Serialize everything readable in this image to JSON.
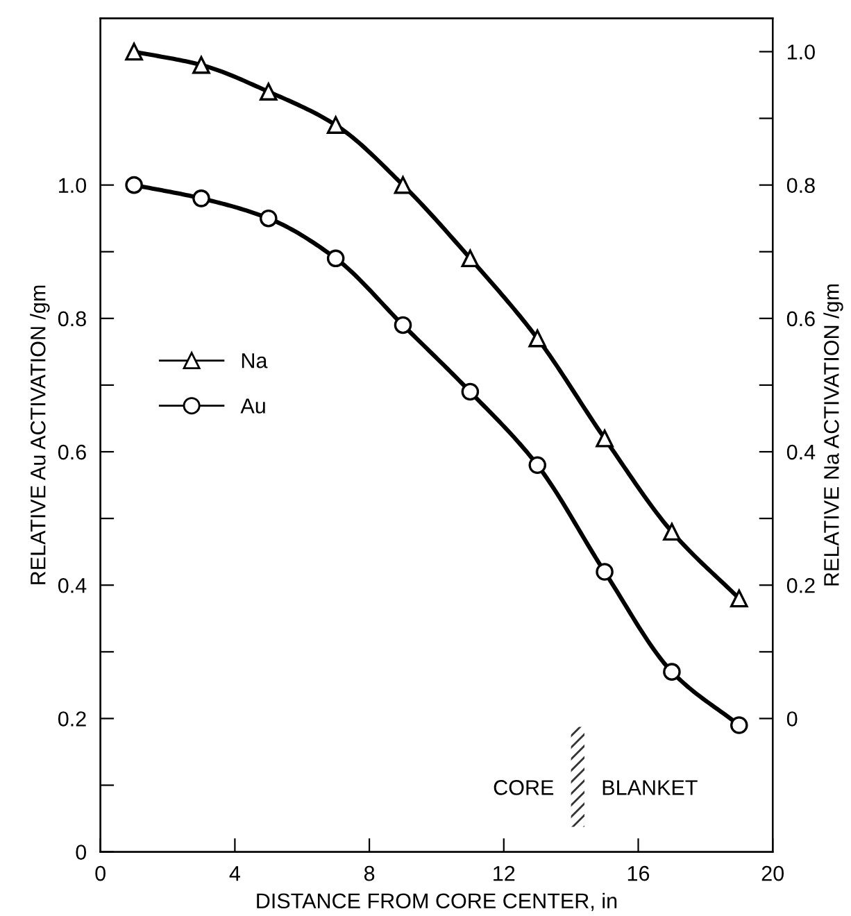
{
  "chart_data": {
    "type": "line",
    "xlabel": "DISTANCE FROM CORE CENTER, in",
    "ylabel": "RELATIVE Au ACTIVATION /gm",
    "y2label": "RELATIVE Na ACTIVATION /gm",
    "x": [
      1,
      3,
      5,
      7,
      9,
      11,
      13,
      15,
      17,
      19
    ],
    "series": [
      {
        "name": "Na",
        "color": "#000000",
        "marker": "triangle",
        "axis": "y2",
        "values": [
          1.0,
          0.98,
          0.94,
          0.89,
          0.8,
          0.69,
          0.57,
          0.42,
          0.28,
          0.18
        ]
      },
      {
        "name": "Au",
        "color": "#000000",
        "marker": "circle",
        "values": [
          1.0,
          0.98,
          0.95,
          0.89,
          0.79,
          0.69,
          0.58,
          0.42,
          0.27,
          0.19
        ]
      }
    ],
    "xlim": [
      0,
      20
    ],
    "xticks": [
      0,
      4,
      8,
      12,
      16,
      20
    ],
    "ylim": [
      0,
      1.25
    ],
    "yticks": [
      0,
      {
        "value": 0.1,
        "label": null
      },
      0.2,
      {
        "value": 0.3,
        "label": null
      },
      0.4,
      {
        "value": 0.5,
        "label": null
      },
      0.6,
      {
        "value": 0.7,
        "label": null
      },
      0.8,
      {
        "value": 0.9,
        "label": null
      },
      {
        "value": 1,
        "label": "1.0"
      }
    ],
    "y2lim": [
      -0.2,
      1.05
    ],
    "y2ticks": [
      0,
      {
        "value": 0.1,
        "label": null
      },
      0.2,
      {
        "value": 0.3,
        "label": null
      },
      0.4,
      {
        "value": 0.5,
        "label": null
      },
      0.6,
      {
        "value": 0.7,
        "label": null
      },
      0.8,
      {
        "value": 0.9,
        "label": null
      },
      {
        "value": 1,
        "label": "1.0"
      }
    ],
    "bands": [
      {
        "axis": "x",
        "from": 14,
        "to": 14.4
      }
    ],
    "annotations": [
      "CORE",
      "BLANKET"
    ],
    "legend": "left",
    "grid": false,
    "line_style": "solid"
  }
}
